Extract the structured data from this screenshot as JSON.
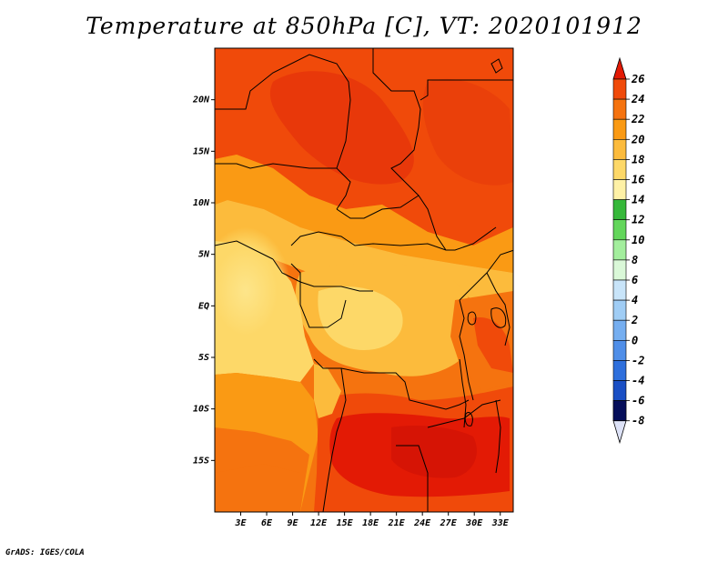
{
  "title": "Temperature at 850hPa [C], VT: 2020101912",
  "credit": "GrADS: IGES/COLA",
  "map": {
    "lon_range": [
      0,
      34.5
    ],
    "lat_range": [
      -20,
      25
    ],
    "lat_ticks": [
      {
        "value": 20,
        "label": "20N"
      },
      {
        "value": 15,
        "label": "15N"
      },
      {
        "value": 10,
        "label": "10N"
      },
      {
        "value": 5,
        "label": "5N"
      },
      {
        "value": 0,
        "label": "EQ"
      },
      {
        "value": -5,
        "label": "5S"
      },
      {
        "value": -10,
        "label": "10S"
      },
      {
        "value": -15,
        "label": "15S"
      }
    ],
    "lon_ticks": [
      {
        "value": 3,
        "label": "3E"
      },
      {
        "value": 6,
        "label": "6E"
      },
      {
        "value": 9,
        "label": "9E"
      },
      {
        "value": 12,
        "label": "12E"
      },
      {
        "value": 15,
        "label": "15E"
      },
      {
        "value": 18,
        "label": "18E"
      },
      {
        "value": 21,
        "label": "21E"
      },
      {
        "value": 24,
        "label": "24E"
      },
      {
        "value": 27,
        "label": "27E"
      },
      {
        "value": 30,
        "label": "30E"
      },
      {
        "value": 33,
        "label": "33E"
      }
    ]
  },
  "colorbar": {
    "levels": [
      {
        "label": "26",
        "color": "#e31a05"
      },
      {
        "label": "24",
        "color": "#f04a0a"
      },
      {
        "label": "22",
        "color": "#f5730f"
      },
      {
        "label": "20",
        "color": "#fa9a14"
      },
      {
        "label": "18",
        "color": "#fcbb3c"
      },
      {
        "label": "16",
        "color": "#fdd868"
      },
      {
        "label": "14",
        "color": "#fef1a6"
      },
      {
        "label": "12",
        "color": "#36b83a"
      },
      {
        "label": "10",
        "color": "#63d65b"
      },
      {
        "label": "8",
        "color": "#a3ee9d"
      },
      {
        "label": "6",
        "color": "#daf8d8"
      },
      {
        "label": "4",
        "color": "#c8e4f9"
      },
      {
        "label": "2",
        "color": "#a0cdf5"
      },
      {
        "label": "0",
        "color": "#75aef0"
      },
      {
        "label": "-2",
        "color": "#4f8ee8"
      },
      {
        "label": "-4",
        "color": "#2e6fdc"
      },
      {
        "label": "-6",
        "color": "#1a4fc4"
      },
      {
        "label": "-8",
        "color": "#0d2a96"
      }
    ],
    "top_color": "#e31a05",
    "bottom_color": "#dde2f7",
    "deepest_color": "#050e5a"
  }
}
